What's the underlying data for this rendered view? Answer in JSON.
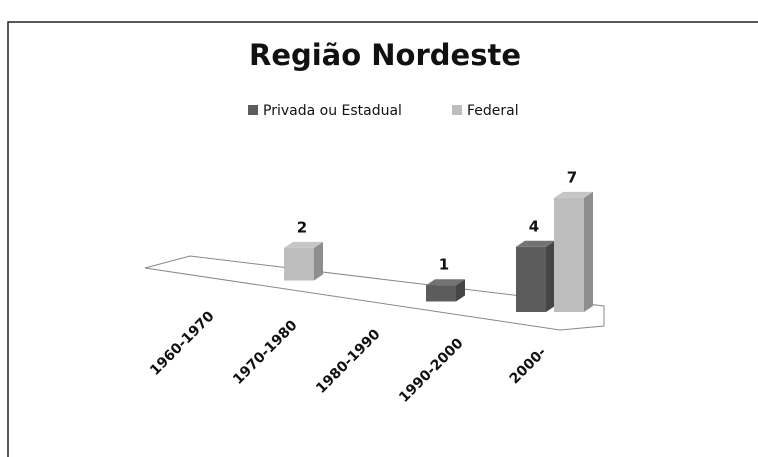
{
  "chart_data": {
    "type": "bar3d",
    "title": "Região Nordeste",
    "categories": [
      "1960-1970",
      "1970-1980",
      "1980-1990",
      "1990-2000",
      "2000-"
    ],
    "series": [
      {
        "name": "Privada ou Estadual",
        "color": "#5c5c5c",
        "values": [
          null,
          null,
          null,
          1,
          4
        ]
      },
      {
        "name": "Federal",
        "color": "#bdbdbd",
        "values": [
          null,
          2,
          null,
          null,
          7
        ]
      }
    ]
  }
}
